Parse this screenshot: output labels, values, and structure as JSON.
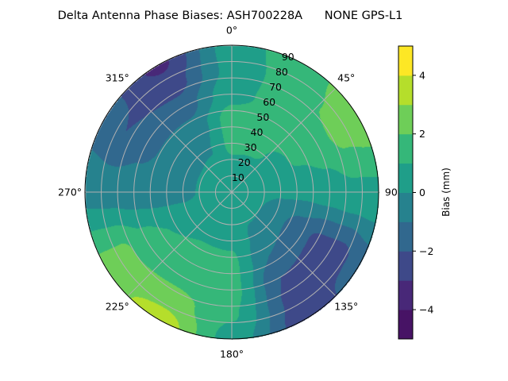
{
  "chart_data": {
    "type": "heatmap",
    "subtype": "polar-filled-contour",
    "title": "Delta Antenna Phase Biases: ASH700228A      NONE GPS-L1",
    "colorbar_label": "Bias (mm)",
    "colormap": "viridis",
    "levels": [
      -5,
      -4,
      -3,
      -2,
      -1,
      0,
      1,
      2,
      3,
      4,
      5
    ],
    "level_colors": [
      "#471365",
      "#482878",
      "#3e4989",
      "#31688e",
      "#26828e",
      "#1f9e89",
      "#35b779",
      "#6ece58",
      "#b5de2b",
      "#fde725"
    ],
    "colorbar_ticks": [
      "4",
      "2",
      "0",
      "−2",
      "−4"
    ],
    "colorbar_tick_values": [
      4,
      2,
      0,
      -2,
      -4
    ],
    "angular_axis": {
      "direction": "clockwise",
      "zero": "north",
      "ticks": [
        0,
        45,
        90,
        135,
        180,
        225,
        270,
        315
      ],
      "tick_labels": [
        "0°",
        "45°",
        "90°",
        "135°",
        "180°",
        "225°",
        "270°",
        "315°"
      ]
    },
    "radial_axis": {
      "range": [
        0,
        90
      ],
      "ticks": [
        10,
        20,
        30,
        40,
        50,
        60,
        70,
        80,
        90
      ],
      "tick_labels": [
        "10",
        "20",
        "30",
        "40",
        "50",
        "60",
        "70",
        "80",
        "90"
      ]
    },
    "grid": true,
    "azimuth": [
      0,
      30,
      60,
      90,
      120,
      150,
      180,
      210,
      240,
      270,
      300,
      330
    ],
    "zenith": [
      0,
      15,
      30,
      45,
      60,
      75,
      90
    ],
    "values": [
      [
        0.5,
        0.6,
        1.3,
        1.5,
        0.7,
        0.3,
        0.5
      ],
      [
        0.5,
        0.5,
        1.2,
        1.3,
        1.4,
        1.6,
        1.7
      ],
      [
        0.5,
        0.4,
        0.6,
        1.2,
        1.6,
        2.3,
        2.6
      ],
      [
        0.5,
        0.3,
        0.1,
        0.2,
        0.5,
        0.8,
        0.8
      ],
      [
        0.5,
        0.2,
        -0.6,
        -1.5,
        -2.2,
        -2.3,
        -1.5
      ],
      [
        0.5,
        0.2,
        -0.3,
        -1.0,
        -2.0,
        -2.3,
        -2.6
      ],
      [
        0.5,
        0.6,
        0.9,
        1.2,
        1.3,
        1.1,
        0.6
      ],
      [
        0.5,
        0.6,
        0.9,
        1.3,
        1.6,
        2.5,
        3.6
      ],
      [
        0.5,
        0.5,
        0.6,
        1.0,
        1.4,
        2.2,
        2.2
      ],
      [
        0.5,
        0.3,
        -0.3,
        -0.5,
        -0.5,
        -0.4,
        -0.3
      ],
      [
        0.5,
        0.3,
        -0.3,
        -0.8,
        -1.3,
        -2.0,
        -1.5
      ],
      [
        0.5,
        0.4,
        -0.1,
        -0.6,
        -1.5,
        -2.5,
        -3.2
      ]
    ]
  }
}
